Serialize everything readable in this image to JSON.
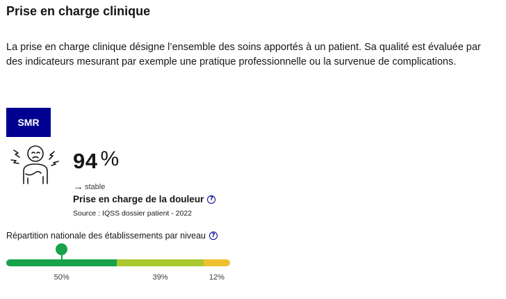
{
  "section": {
    "title": "Prise en charge clinique",
    "description": "La prise en charge clinique désigne l’ensemble des soins apportés à un patient. Sa qualité est évaluée par des indicateurs mesurant par exemple une pratique professionnelle ou la survenue de complica­tions."
  },
  "card": {
    "badge": "SMR",
    "icon": "patient-pain-icon",
    "value": "94",
    "unit": "%",
    "trend_arrow": "→",
    "trend_label": "stable",
    "indicator_label": "Prise en charge de la douleur",
    "help_icon": "question-circle-icon",
    "source": "Source : IQSS dossier patient - 2022"
  },
  "distribution": {
    "label": "Répartition nationale des établissements par niveau",
    "segments": [
      {
        "label": "50%",
        "share": 50,
        "color": "#18a34a"
      },
      {
        "label": "39%",
        "share": 39,
        "color": "#a9c92f"
      },
      {
        "label": "12%",
        "share": 12,
        "color": "#f0c02e"
      }
    ],
    "marker_segment": 0
  },
  "colors": {
    "brand_blue": "#000091"
  }
}
